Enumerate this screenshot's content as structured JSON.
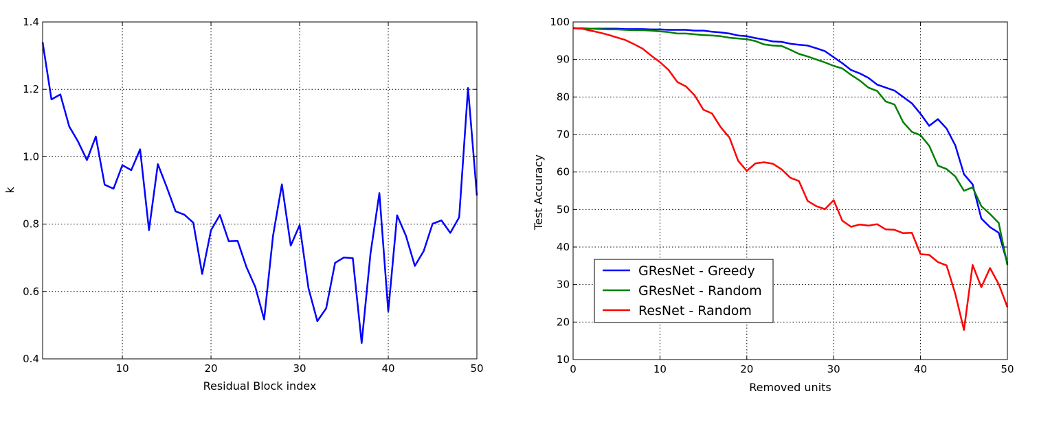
{
  "chart_data": [
    {
      "type": "line",
      "title": "",
      "xlabel": "Residual Block index",
      "ylabel": "k",
      "xlim": [
        1,
        50
      ],
      "ylim": [
        0.4,
        1.4
      ],
      "xticks": [
        10,
        20,
        30,
        40,
        50
      ],
      "xtick_labels": [
        "10",
        "20",
        "30",
        "40",
        "50"
      ],
      "yticks": [
        0.4,
        0.6,
        0.8,
        1.0,
        1.2,
        1.4
      ],
      "ytick_labels": [
        "0.4",
        "0.6",
        "0.8",
        "1.0",
        "1.2",
        "1.4"
      ],
      "grid": true,
      "series": [
        {
          "color": "#0000ff",
          "x": [
            1,
            2,
            3,
            4,
            5,
            6,
            7,
            8,
            9,
            10,
            11,
            12,
            13,
            14,
            15,
            16,
            17,
            18,
            19,
            20,
            21,
            22,
            23,
            24,
            25,
            26,
            27,
            28,
            29,
            30,
            31,
            32,
            33,
            34,
            35,
            36,
            37,
            38,
            39,
            40,
            41,
            42,
            43,
            44,
            45,
            46,
            47,
            48,
            49,
            50
          ],
          "y": [
            1.34,
            1.17,
            1.185,
            1.09,
            1.045,
            0.99,
            1.06,
            0.917,
            0.905,
            0.975,
            0.96,
            1.022,
            0.782,
            0.978,
            0.91,
            0.838,
            0.828,
            0.804,
            0.652,
            0.782,
            0.827,
            0.749,
            0.75,
            0.672,
            0.613,
            0.517,
            0.765,
            0.918,
            0.736,
            0.797,
            0.61,
            0.512,
            0.55,
            0.685,
            0.701,
            0.699,
            0.447,
            0.713,
            0.892,
            0.541,
            0.826,
            0.765,
            0.676,
            0.72,
            0.801,
            0.811,
            0.774,
            0.82,
            1.204,
            0.885
          ]
        }
      ]
    },
    {
      "type": "line",
      "title": "",
      "xlabel": "Removed units",
      "ylabel": "Test Accuracy",
      "xlim": [
        0,
        50
      ],
      "ylim": [
        10,
        100
      ],
      "xticks": [
        0,
        10,
        20,
        30,
        40,
        50
      ],
      "xtick_labels": [
        "0",
        "10",
        "20",
        "30",
        "40",
        "50"
      ],
      "yticks": [
        10,
        20,
        30,
        40,
        50,
        60,
        70,
        80,
        90,
        100
      ],
      "ytick_labels": [
        "10",
        "20",
        "30",
        "40",
        "50",
        "60",
        "70",
        "80",
        "90",
        "100"
      ],
      "grid": true,
      "legend": "lower-left",
      "series": [
        {
          "name": "GResNet - Greedy",
          "color": "#0000ff",
          "x": [
            0,
            1,
            2,
            3,
            4,
            5,
            6,
            7,
            8,
            9,
            10,
            11,
            12,
            13,
            14,
            15,
            16,
            17,
            18,
            19,
            20,
            21,
            22,
            23,
            24,
            25,
            26,
            27,
            28,
            29,
            30,
            31,
            32,
            33,
            34,
            35,
            36,
            37,
            38,
            39,
            40,
            41,
            42,
            43,
            44,
            45,
            46,
            47,
            48,
            49,
            50
          ],
          "y": [
            98.3,
            98.3,
            98.2,
            98.2,
            98.2,
            98.2,
            98.1,
            98.1,
            98.1,
            98.0,
            98.0,
            97.9,
            97.9,
            97.9,
            97.7,
            97.7,
            97.4,
            97.2,
            96.9,
            96.4,
            96.2,
            95.7,
            95.3,
            94.8,
            94.7,
            94.2,
            93.9,
            93.7,
            93.0,
            92.2,
            90.6,
            89.0,
            87.2,
            86.3,
            85.1,
            83.3,
            82.5,
            81.7,
            80.0,
            78.3,
            75.5,
            72.3,
            74.1,
            71.6,
            67.1,
            59.4,
            56.7,
            47.6,
            45.3,
            43.8,
            35.7
          ]
        },
        {
          "name": "GResNet - Random",
          "color": "#008000",
          "x": [
            0,
            1,
            2,
            3,
            4,
            5,
            6,
            7,
            8,
            9,
            10,
            11,
            12,
            13,
            14,
            15,
            16,
            17,
            18,
            19,
            20,
            21,
            22,
            23,
            24,
            25,
            26,
            27,
            28,
            29,
            30,
            31,
            32,
            33,
            34,
            35,
            36,
            37,
            38,
            39,
            40,
            41,
            42,
            43,
            44,
            45,
            46,
            47,
            48,
            49,
            50
          ],
          "y": [
            98.3,
            98.2,
            98.2,
            98.1,
            98.0,
            98.0,
            97.9,
            97.8,
            97.8,
            97.7,
            97.5,
            97.3,
            96.9,
            96.9,
            96.7,
            96.5,
            96.4,
            96.2,
            95.8,
            95.6,
            95.4,
            94.9,
            94.0,
            93.7,
            93.6,
            92.6,
            91.5,
            90.8,
            90.0,
            89.2,
            88.3,
            87.6,
            85.9,
            84.4,
            82.5,
            81.6,
            78.8,
            78.0,
            73.3,
            70.7,
            69.8,
            67.0,
            61.7,
            60.8,
            58.8,
            55.0,
            55.9,
            50.9,
            48.8,
            46.4,
            35.2
          ]
        },
        {
          "name": "ResNet - Random",
          "color": "#ff0000",
          "x": [
            0,
            1,
            2,
            3,
            4,
            5,
            6,
            7,
            8,
            9,
            10,
            11,
            12,
            13,
            14,
            15,
            16,
            17,
            18,
            19,
            20,
            21,
            22,
            23,
            24,
            25,
            26,
            27,
            28,
            29,
            30,
            31,
            32,
            33,
            34,
            35,
            36,
            37,
            38,
            39,
            40,
            41,
            42,
            43,
            44,
            45,
            46,
            47,
            48,
            49,
            50
          ],
          "y": [
            98.4,
            98.2,
            97.7,
            97.2,
            96.6,
            95.9,
            95.2,
            94.1,
            92.9,
            91.0,
            89.3,
            87.2,
            84.0,
            82.8,
            80.4,
            76.6,
            75.6,
            71.9,
            69.2,
            63.0,
            60.3,
            62.3,
            62.6,
            62.2,
            60.7,
            58.5,
            57.6,
            52.3,
            50.9,
            50.1,
            52.5,
            47.0,
            45.4,
            46.0,
            45.7,
            46.1,
            44.7,
            44.6,
            43.7,
            43.8,
            38.1,
            37.9,
            36.0,
            35.1,
            27.5,
            17.9,
            35.2,
            29.3,
            34.4,
            30.1,
            24.0
          ]
        }
      ]
    }
  ]
}
